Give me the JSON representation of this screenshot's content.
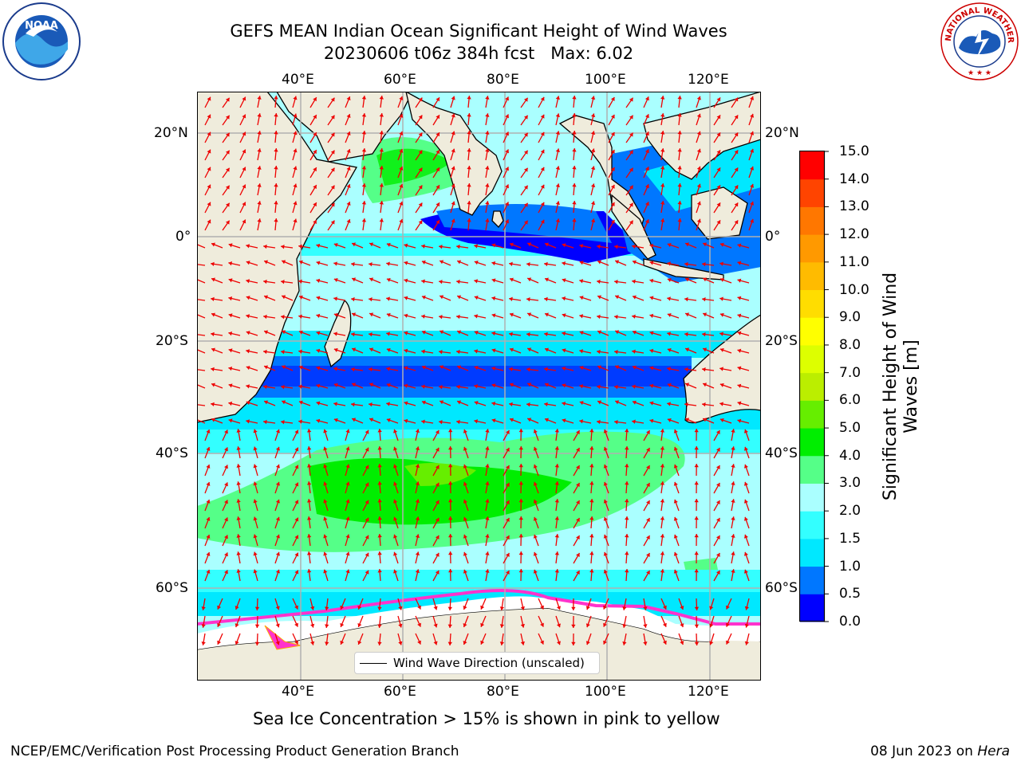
{
  "title": {
    "line1": "GEFS MEAN Indian Ocean Significant Height of Wind Waves",
    "line2": "20230606 t06z 384h fcst   Max: 6.02"
  },
  "map": {
    "lon_ticks": [
      "40°E",
      "60°E",
      "80°E",
      "100°E",
      "120°E"
    ],
    "lat_ticks": [
      "20°N",
      "0°",
      "20°S",
      "40°S",
      "60°S"
    ],
    "legend_label": "Wind Wave Direction (unscaled)"
  },
  "colorbar": {
    "label": "Significant Height of Wind Waves [m]",
    "ticks": [
      "0.0",
      "0.5",
      "1.0",
      "1.5",
      "2.0",
      "3.0",
      "4.0",
      "5.0",
      "6.0",
      "7.0",
      "8.0",
      "9.0",
      "10.0",
      "11.0",
      "12.0",
      "13.0",
      "14.0",
      "15.0"
    ],
    "colors": [
      "#0000ff",
      "#0077ff",
      "#00e8ff",
      "#33ffff",
      "#aaffff",
      "#55ff88",
      "#00ee00",
      "#66ee00",
      "#bbee00",
      "#ddff00",
      "#ffff00",
      "#ffdd00",
      "#ffbb00",
      "#ff9900",
      "#ff7700",
      "#ff4400",
      "#ff0000"
    ]
  },
  "sea_ice_note": "Sea Ice Concentration > 15% is shown in pink to yellow",
  "footer": {
    "left": "NCEP/EMC/Verification Post Processing Product Generation Branch",
    "date": "08 Jun 2023 on ",
    "machine": "Hera"
  },
  "logos": {
    "noaa": "NOAA",
    "nws": "NATIONAL WEATHER SERVICE"
  },
  "colors": {
    "land": "#efecdc",
    "ocean_base": "#aaffff",
    "arrow": "#ee0000",
    "ice": "#ff33cc"
  }
}
